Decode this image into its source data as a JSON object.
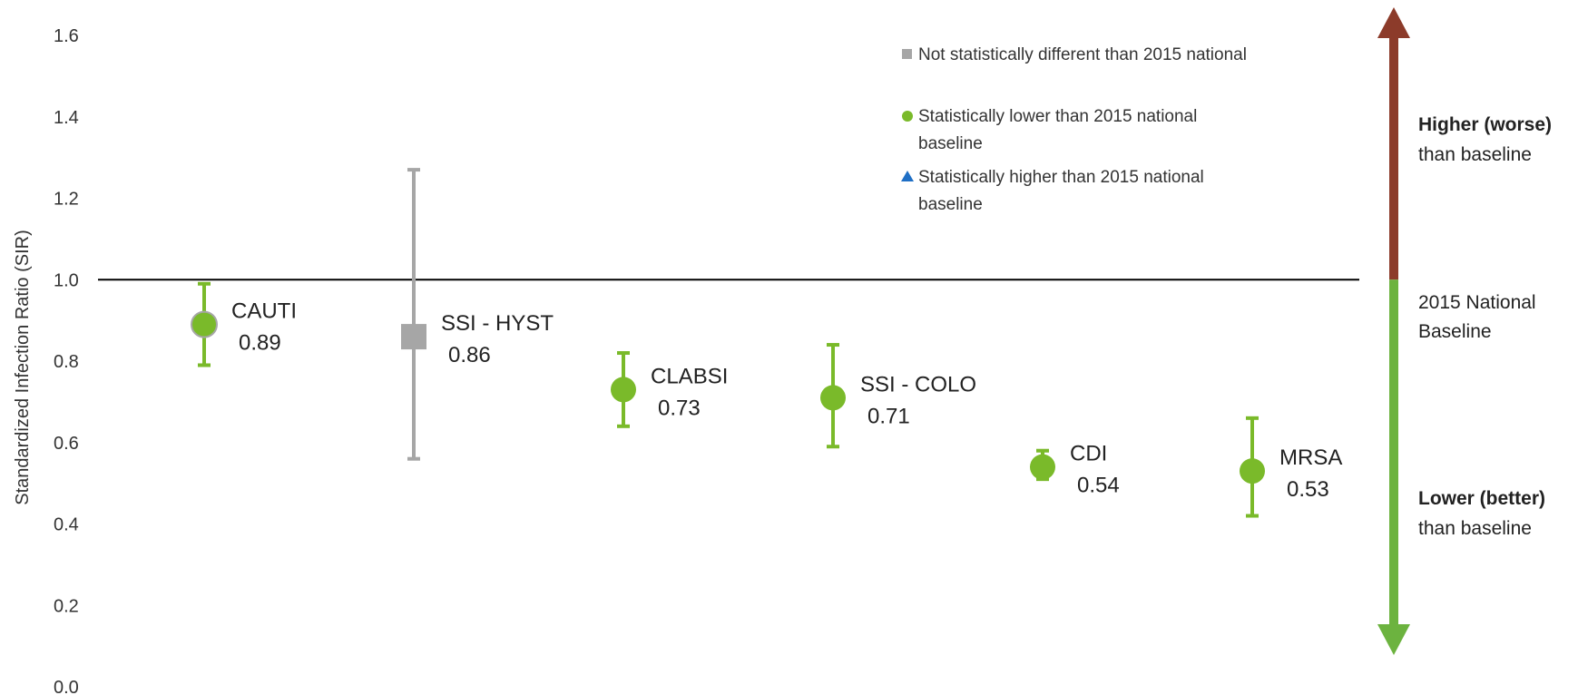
{
  "chart_data": {
    "type": "scatter",
    "title": "",
    "xlabel": "",
    "ylabel": "Standardized Infection Ratio (SIR)",
    "ylim": [
      0,
      1.6
    ],
    "yticks": [
      "0.0",
      "0.2",
      "0.4",
      "0.6",
      "0.8",
      "1.0",
      "1.2",
      "1.4",
      "1.6"
    ],
    "grid": false,
    "baseline_value": 1.0,
    "points": [
      {
        "name": "CAUTI",
        "value": 0.89,
        "value_label": "0.89",
        "ci_low": 0.79,
        "ci_high": 0.99,
        "status": "lower"
      },
      {
        "name": "SSI - HYST",
        "value": 0.86,
        "value_label": "0.86",
        "ci_low": 0.56,
        "ci_high": 1.27,
        "status": "not_different"
      },
      {
        "name": "CLABSI",
        "value": 0.73,
        "value_label": "0.73",
        "ci_low": 0.64,
        "ci_high": 0.82,
        "status": "lower"
      },
      {
        "name": "SSI - COLO",
        "value": 0.71,
        "value_label": "0.71",
        "ci_low": 0.59,
        "ci_high": 0.84,
        "status": "lower"
      },
      {
        "name": "CDI",
        "value": 0.54,
        "value_label": "0.54",
        "ci_low": 0.51,
        "ci_high": 0.58,
        "status": "lower"
      },
      {
        "name": "MRSA",
        "value": 0.53,
        "value_label": "0.53",
        "ci_low": 0.42,
        "ci_high": 0.66,
        "status": "lower"
      }
    ],
    "legend": {
      "placement": "top-right",
      "entries": [
        {
          "key": "not_different",
          "marker": "square",
          "lines": [
            "Not statistically different than 2015 national"
          ]
        },
        {
          "key": "lower",
          "marker": "circle",
          "lines": [
            "Statistically lower than 2015 national",
            "baseline"
          ]
        },
        {
          "key": "higher",
          "marker": "triangle",
          "lines": [
            "Statistically higher than 2015 national",
            "baseline"
          ]
        }
      ]
    },
    "side_annotations": {
      "higher_bold": "Higher (worse)",
      "higher_rest": "than baseline",
      "baseline_line1": "2015 National",
      "baseline_line2": "Baseline",
      "lower_bold": "Lower (better)",
      "lower_rest": "than baseline"
    },
    "colors": {
      "lower": "#7aba2a",
      "not_different": "#a6a6a6",
      "higher": "#1f6fc5",
      "arrow_up": "#8c3b2a",
      "arrow_down": "#6cb33f",
      "higher_text": "#8c3b2a",
      "lower_text": "#6cb33f",
      "baseline_line": "#000000"
    }
  }
}
